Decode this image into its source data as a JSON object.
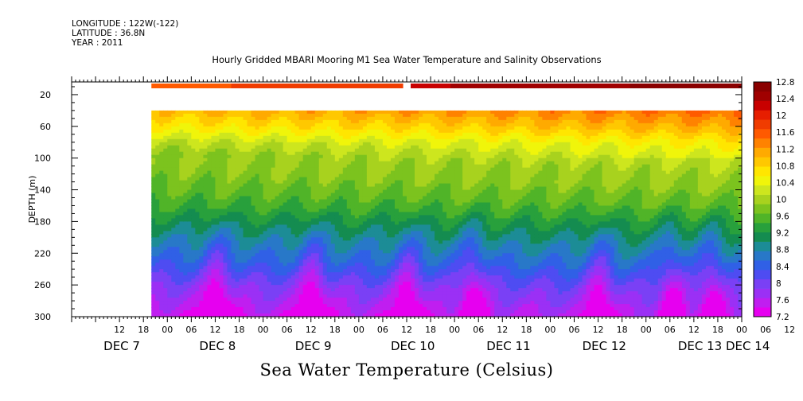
{
  "header": {
    "longitude": "LONGITUDE : 122W(-122)",
    "latitude": "LATITUDE : 36.8N",
    "year": "YEAR : 2011"
  },
  "chart_data": {
    "type": "heatmap",
    "title": "Hourly Gridded MBARI Mooring M1 Sea Water Temperature and Salinity Observations",
    "footer": "Sea Water Temperature (Celsius)",
    "xlabel": "",
    "ylabel": "DEPTH (m)",
    "x_range_hours": [
      0,
      168
    ],
    "x_start": "DEC 7 00:00",
    "ylim": [
      300,
      0
    ],
    "y_ticks": [
      20,
      60,
      100,
      140,
      180,
      220,
      260,
      300
    ],
    "hour_ticks": [
      "12",
      "18",
      "00",
      "06",
      "12",
      "18",
      "00",
      "06",
      "12",
      "18",
      "00",
      "06",
      "12",
      "18",
      "00",
      "06",
      "12",
      "18",
      "00",
      "06",
      "12",
      "18",
      "00",
      "06",
      "12",
      "18",
      "00",
      "06",
      "12",
      "18",
      "00",
      "06"
    ],
    "day_labels": [
      {
        "label": "DEC  7",
        "hour": 12
      },
      {
        "label": "DEC  8",
        "hour": 36
      },
      {
        "label": "DEC  9",
        "hour": 60
      },
      {
        "label": "DEC 10",
        "hour": 84
      },
      {
        "label": "DEC 11",
        "hour": 108
      },
      {
        "label": "DEC 12",
        "hour": 132
      },
      {
        "label": "DEC 13",
        "hour": 156
      },
      {
        "label": "DEC 14",
        "hour": 168
      }
    ],
    "data_start_hour": 20,
    "surface_gap_hours": [
      83,
      84.5
    ],
    "colorbar": {
      "levels": [
        7.2,
        7.6,
        8,
        8.4,
        8.8,
        9.2,
        9.6,
        10,
        10.4,
        10.8,
        11.2,
        11.6,
        12,
        12.4,
        12.8
      ],
      "colors": [
        "#e600f0",
        "#c01ef0",
        "#9b30f5",
        "#7a40f5",
        "#4e4cf2",
        "#3060e6",
        "#2878c8",
        "#1c8c96",
        "#148c50",
        "#28a03c",
        "#50b428",
        "#7cc31e",
        "#a8d21e",
        "#cde61e",
        "#f0f50a",
        "#ffe600",
        "#ffc800",
        "#ffaa00",
        "#ff8200",
        "#ff5a00",
        "#f03c00",
        "#e61e00",
        "#c80000",
        "#a00000",
        "#8a0000"
      ]
    },
    "profiles": [
      {
        "depth": 10,
        "temp": 12.0
      },
      {
        "depth": 40,
        "temp": 11.2
      },
      {
        "depth": 60,
        "temp": 10.8
      },
      {
        "depth": 80,
        "temp": 10.3
      },
      {
        "depth": 100,
        "temp": 10.0
      },
      {
        "depth": 130,
        "temp": 9.8
      },
      {
        "depth": 160,
        "temp": 9.5
      },
      {
        "depth": 180,
        "temp": 9.2
      },
      {
        "depth": 200,
        "temp": 8.9
      },
      {
        "depth": 230,
        "temp": 8.5
      },
      {
        "depth": 260,
        "temp": 8.0
      },
      {
        "depth": 285,
        "temp": 7.7
      },
      {
        "depth": 300,
        "temp": 7.5
      }
    ]
  }
}
